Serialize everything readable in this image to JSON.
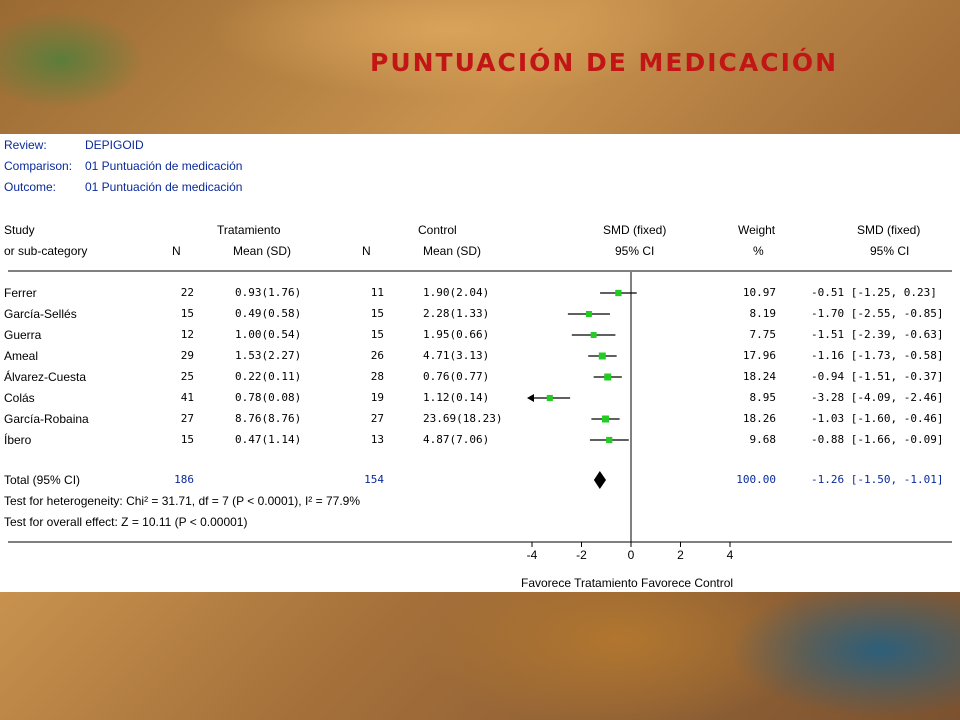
{
  "slide_title": "PUNTUACIÓN DE MEDICACIÓN",
  "meta": {
    "review_label": "Review:",
    "review": "DEPIGOID",
    "comparison_label": "Comparison:",
    "comparison": "01 Puntuación de medicación",
    "outcome_label": "Outcome:",
    "outcome": "01 Puntuación de medicación"
  },
  "headers": {
    "study1": "Study",
    "study2": "or sub-category",
    "trat": "Tratamiento",
    "ctrl": "Control",
    "n": "N",
    "mean": "Mean (SD)",
    "smd": "SMD (fixed)",
    "ci": "95% CI",
    "weight": "Weight",
    "pct": "%"
  },
  "total": {
    "label": "Total (95% CI)",
    "n_t": "186",
    "n_c": "154",
    "weight": "100.00",
    "smd_ci": "-1.26 [-1.50, -1.01]",
    "heterogeneity": "Test for heterogeneity: Chi² = 31.71, df = 7 (P < 0.0001), I² = 77.9%",
    "overall": "Test for overall effect: Z = 10.11 (P < 0.00001)"
  },
  "chart_data": {
    "type": "forest",
    "x_ticks": [
      "-4",
      "-2",
      "0",
      "2",
      "4"
    ],
    "xlim": [
      -4,
      4
    ],
    "xlabel_left": "Favorece Tratamiento",
    "xlabel_right": "Favorece Control",
    "colors": {
      "point": "#22cc22",
      "line": "#000000"
    },
    "studies": [
      {
        "name": "Ferrer",
        "n_t": "22",
        "mean_t": "0.93(1.76)",
        "n_c": "11",
        "mean_c": "1.90(2.04)",
        "weight": "10.97",
        "ci_text": "-0.51 [-1.25, 0.23]",
        "smd": -0.51,
        "lo": -1.25,
        "hi": 0.23
      },
      {
        "name": "García-Sellés",
        "n_t": "15",
        "mean_t": "0.49(0.58)",
        "n_c": "15",
        "mean_c": "2.28(1.33)",
        "weight": "8.19",
        "ci_text": "-1.70 [-2.55, -0.85]",
        "smd": -1.7,
        "lo": -2.55,
        "hi": -0.85
      },
      {
        "name": "Guerra",
        "n_t": "12",
        "mean_t": "1.00(0.54)",
        "n_c": "15",
        "mean_c": "1.95(0.66)",
        "weight": "7.75",
        "ci_text": "-1.51 [-2.39, -0.63]",
        "smd": -1.51,
        "lo": -2.39,
        "hi": -0.63
      },
      {
        "name": "Ameal",
        "n_t": "29",
        "mean_t": "1.53(2.27)",
        "n_c": "26",
        "mean_c": "4.71(3.13)",
        "weight": "17.96",
        "ci_text": "-1.16 [-1.73, -0.58]",
        "smd": -1.16,
        "lo": -1.73,
        "hi": -0.58
      },
      {
        "name": "Álvarez-Cuesta",
        "n_t": "25",
        "mean_t": "0.22(0.11)",
        "n_c": "28",
        "mean_c": "0.76(0.77)",
        "weight": "18.24",
        "ci_text": "-0.94 [-1.51, -0.37]",
        "smd": -0.94,
        "lo": -1.51,
        "hi": -0.37
      },
      {
        "name": "Colás",
        "n_t": "41",
        "mean_t": "0.78(0.08)",
        "n_c": "19",
        "mean_c": "1.12(0.14)",
        "weight": "8.95",
        "ci_text": "-3.28 [-4.09, -2.46]",
        "smd": -3.28,
        "lo": -4.09,
        "hi": -2.46
      },
      {
        "name": "García-Robaina",
        "n_t": "27",
        "mean_t": "8.76(8.76)",
        "n_c": "27",
        "mean_c": "23.69(18.23)",
        "weight": "18.26",
        "ci_text": "-1.03 [-1.60, -0.46]",
        "smd": -1.03,
        "lo": -1.6,
        "hi": -0.46
      },
      {
        "name": "Íbero",
        "n_t": "15",
        "mean_t": "0.47(1.14)",
        "n_c": "13",
        "mean_c": "4.87(7.06)",
        "weight": "9.68",
        "ci_text": "-0.88 [-1.66, -0.09]",
        "smd": -0.88,
        "lo": -1.66,
        "hi": -0.09
      }
    ],
    "total": {
      "smd": -1.26,
      "lo": -1.5,
      "hi": -1.01
    }
  }
}
